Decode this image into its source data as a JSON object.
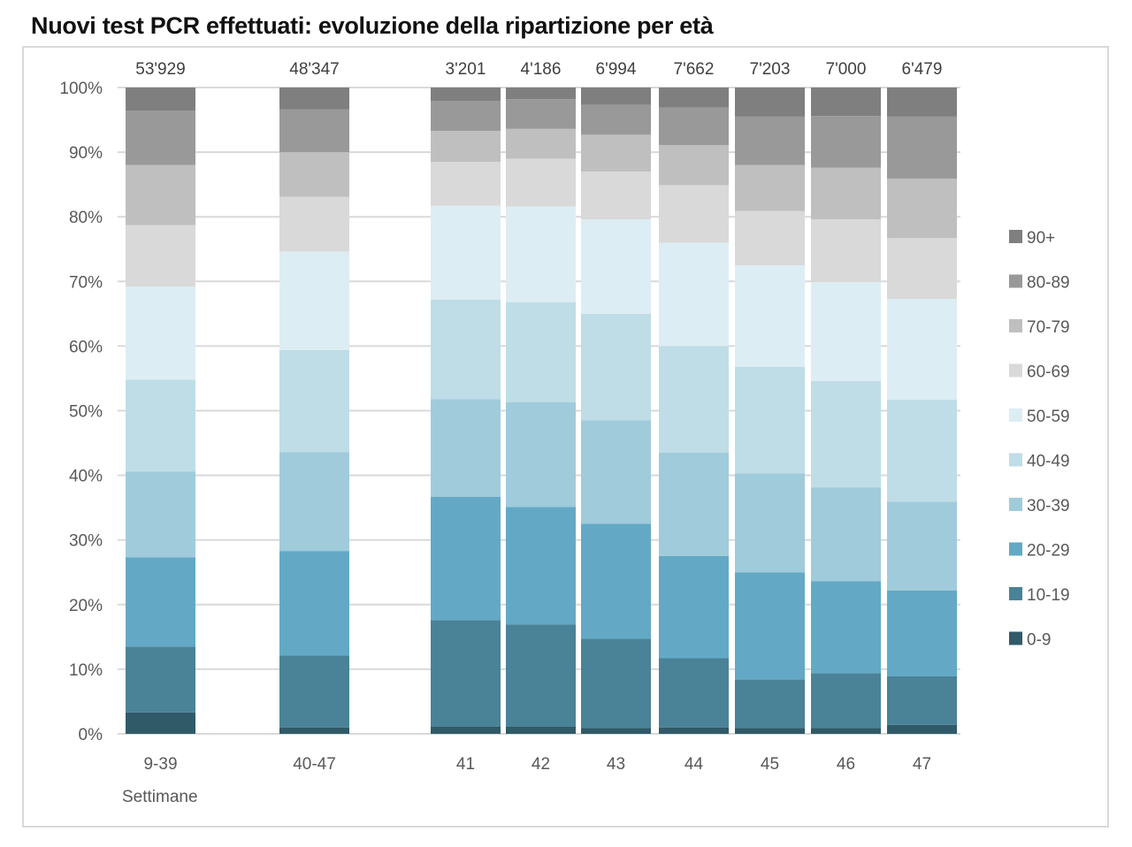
{
  "chart_data": {
    "type": "bar",
    "stacked": true,
    "title": "Nuovi test PCR effettuati: evoluzione della ripartizione per età",
    "xlabel": "Settimane",
    "ylabel": "",
    "ylim": [
      0,
      100
    ],
    "yticks": [
      "0%",
      "10%",
      "20%",
      "30%",
      "40%",
      "50%",
      "60%",
      "70%",
      "80%",
      "90%",
      "100%"
    ],
    "grid": true,
    "legend_position": "right",
    "categories": [
      "9-39",
      "40-47",
      "41",
      "42",
      "43",
      "44",
      "45",
      "46",
      "47"
    ],
    "gaps_after": [
      0,
      1
    ],
    "totals": [
      "53'929",
      "48'347",
      "3'201",
      "4'186",
      "6'994",
      "7'662",
      "7'203",
      "7'000",
      "6'479"
    ],
    "series": [
      {
        "name": "0-9",
        "color": "#305a68",
        "values": [
          3.3,
          1.0,
          1.1,
          1.1,
          0.9,
          1.0,
          0.9,
          0.9,
          1.4
        ]
      },
      {
        "name": "10-19",
        "color": "#4a8298",
        "values": [
          10.2,
          11.1,
          16.5,
          15.8,
          13.8,
          10.7,
          7.5,
          8.5,
          7.5
        ]
      },
      {
        "name": "20-29",
        "color": "#63a9c5",
        "values": [
          13.8,
          16.2,
          19.1,
          18.2,
          17.8,
          15.8,
          16.6,
          14.2,
          13.3
        ]
      },
      {
        "name": "30-39",
        "color": "#a0cbdb",
        "values": [
          13.3,
          15.3,
          15.1,
          16.2,
          16.0,
          16.0,
          15.3,
          14.5,
          13.7
        ]
      },
      {
        "name": "40-49",
        "color": "#bfdde7",
        "values": [
          14.2,
          15.8,
          15.4,
          15.5,
          16.5,
          16.5,
          16.5,
          16.5,
          15.8
        ]
      },
      {
        "name": "50-59",
        "color": "#ddedf4",
        "values": [
          14.4,
          15.2,
          14.5,
          14.8,
          14.6,
          16.0,
          15.7,
          15.3,
          15.6
        ]
      },
      {
        "name": "60-69",
        "color": "#d9d9d9",
        "values": [
          9.5,
          8.5,
          6.8,
          7.4,
          7.4,
          8.9,
          8.4,
          9.7,
          9.4
        ]
      },
      {
        "name": "70-79",
        "color": "#bfbfbf",
        "values": [
          9.3,
          6.9,
          4.8,
          4.6,
          5.7,
          6.2,
          7.1,
          8.0,
          9.2
        ]
      },
      {
        "name": "80-89",
        "color": "#999999",
        "values": [
          8.4,
          6.6,
          4.6,
          4.6,
          4.6,
          5.8,
          7.5,
          8.0,
          9.6
        ]
      },
      {
        "name": "90+",
        "color": "#7f7f7f",
        "values": [
          3.6,
          3.4,
          2.1,
          1.8,
          2.7,
          3.1,
          4.5,
          4.4,
          4.5
        ]
      }
    ]
  }
}
